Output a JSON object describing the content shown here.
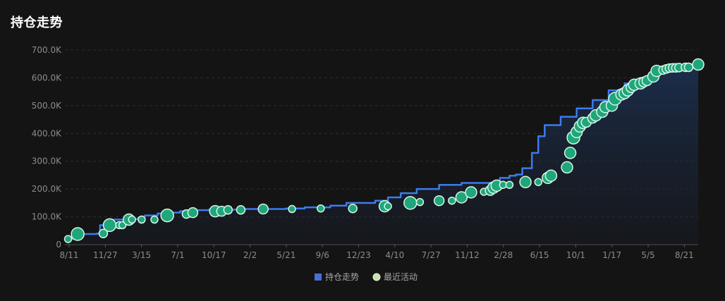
{
  "title": "持仓走势",
  "colors": {
    "background": "#141414",
    "line": "#3b7bf0",
    "dot_fill": "#1fa67a",
    "dot_stroke": "#d7f5e6",
    "grid": "#2e2e2e"
  },
  "chart_data": {
    "type": "line",
    "ylim": [
      0,
      700000
    ],
    "y_ticks": [
      "0",
      "100.0K",
      "200.0K",
      "300.0K",
      "400.0K",
      "500.0K",
      "600.0K",
      "700.0K"
    ],
    "x_ticks": [
      "8/11",
      "11/27",
      "3/15",
      "7/1",
      "10/17",
      "2/2",
      "5/21",
      "9/6",
      "12/23",
      "4/10",
      "7/27",
      "11/12",
      "2/28",
      "6/15",
      "10/1",
      "1/17",
      "5/5",
      "8/21"
    ],
    "grid": true,
    "legend_position": "bottom-center",
    "series": [
      {
        "name": "持仓走势",
        "type": "line-area",
        "values": [
          [
            0,
            20000
          ],
          [
            3,
            38000
          ],
          [
            5,
            38000
          ],
          [
            10,
            40000
          ],
          [
            11,
            70000
          ],
          [
            13,
            70000
          ],
          [
            15,
            90000
          ],
          [
            17,
            90000
          ],
          [
            19,
            92000
          ],
          [
            23,
            98000
          ],
          [
            25,
            105000
          ],
          [
            29,
            112000
          ],
          [
            31,
            115000
          ],
          [
            36,
            120000
          ],
          [
            40,
            124000
          ],
          [
            45,
            126000
          ],
          [
            55,
            128000
          ],
          [
            62,
            128000
          ],
          [
            69,
            130000
          ],
          [
            75,
            134000
          ],
          [
            83,
            140000
          ],
          [
            88,
            150000
          ],
          [
            97,
            158000
          ],
          [
            101,
            170000
          ],
          [
            105,
            185000
          ],
          [
            110,
            200000
          ],
          [
            117,
            215000
          ],
          [
            124,
            222000
          ],
          [
            130,
            222000
          ],
          [
            136,
            240000
          ],
          [
            139,
            248000
          ],
          [
            141,
            252000
          ],
          [
            143,
            275000
          ],
          [
            146,
            330000
          ],
          [
            148,
            390000
          ],
          [
            150,
            430000
          ],
          [
            155,
            460000
          ],
          [
            160,
            490000
          ],
          [
            165,
            520000
          ],
          [
            170,
            555000
          ],
          [
            175,
            580000
          ],
          [
            180,
            600000
          ],
          [
            185,
            625000
          ],
          [
            190,
            635000
          ],
          [
            195,
            640000
          ],
          [
            198,
            648000
          ]
        ]
      },
      {
        "name": "最近活动",
        "type": "scatter",
        "points": [
          [
            1,
            20000,
            5
          ],
          [
            4,
            38000,
            9
          ],
          [
            12,
            40000,
            6
          ],
          [
            14,
            70000,
            9
          ],
          [
            17,
            70000,
            5
          ],
          [
            18,
            70000,
            5
          ],
          [
            20,
            90000,
            8
          ],
          [
            21,
            90000,
            5
          ],
          [
            24,
            90000,
            5
          ],
          [
            28,
            90000,
            5
          ],
          [
            32,
            105000,
            9
          ],
          [
            38,
            110000,
            6
          ],
          [
            40,
            115000,
            7
          ],
          [
            47,
            120000,
            8
          ],
          [
            49,
            120000,
            7
          ],
          [
            51,
            125000,
            6
          ],
          [
            55,
            125000,
            6
          ],
          [
            62,
            128000,
            7
          ],
          [
            71,
            128000,
            5
          ],
          [
            80,
            130000,
            5
          ],
          [
            90,
            130000,
            6
          ],
          [
            100,
            138000,
            8
          ],
          [
            101,
            138000,
            5
          ],
          [
            108,
            150000,
            9
          ],
          [
            111,
            153000,
            5
          ],
          [
            117,
            158000,
            7
          ],
          [
            121,
            158000,
            5
          ],
          [
            124,
            170000,
            8
          ],
          [
            127,
            188000,
            8
          ],
          [
            131,
            190000,
            5
          ],
          [
            133,
            195000,
            7
          ],
          [
            134,
            205000,
            8
          ],
          [
            135,
            212000,
            8
          ],
          [
            137,
            215000,
            5
          ],
          [
            139,
            215000,
            5
          ],
          [
            144,
            225000,
            8
          ],
          [
            148,
            225000,
            5
          ],
          [
            151,
            240000,
            8
          ],
          [
            152,
            248000,
            8
          ],
          [
            157,
            278000,
            8
          ],
          [
            158,
            330000,
            8
          ],
          [
            159,
            385000,
            9
          ],
          [
            160,
            405000,
            8
          ],
          [
            161,
            425000,
            8
          ],
          [
            162,
            438000,
            8
          ],
          [
            163,
            440000,
            7
          ],
          [
            165,
            455000,
            7
          ],
          [
            166,
            465000,
            8
          ],
          [
            168,
            478000,
            8
          ],
          [
            169,
            495000,
            8
          ],
          [
            171,
            500000,
            8
          ],
          [
            172,
            525000,
            9
          ],
          [
            174,
            540000,
            8
          ],
          [
            175,
            545000,
            8
          ],
          [
            176,
            555000,
            8
          ],
          [
            177,
            565000,
            7
          ],
          [
            178,
            575000,
            8
          ],
          [
            180,
            580000,
            8
          ],
          [
            181,
            585000,
            7
          ],
          [
            182,
            590000,
            7
          ],
          [
            184,
            605000,
            8
          ],
          [
            185,
            625000,
            8
          ],
          [
            187,
            628000,
            6
          ],
          [
            188,
            632000,
            6
          ],
          [
            189,
            635000,
            6
          ],
          [
            190,
            636000,
            6
          ],
          [
            191,
            636000,
            6
          ],
          [
            192,
            637000,
            6
          ],
          [
            194,
            638000,
            6
          ],
          [
            195,
            638000,
            6
          ],
          [
            198,
            648000,
            8
          ]
        ]
      }
    ]
  }
}
